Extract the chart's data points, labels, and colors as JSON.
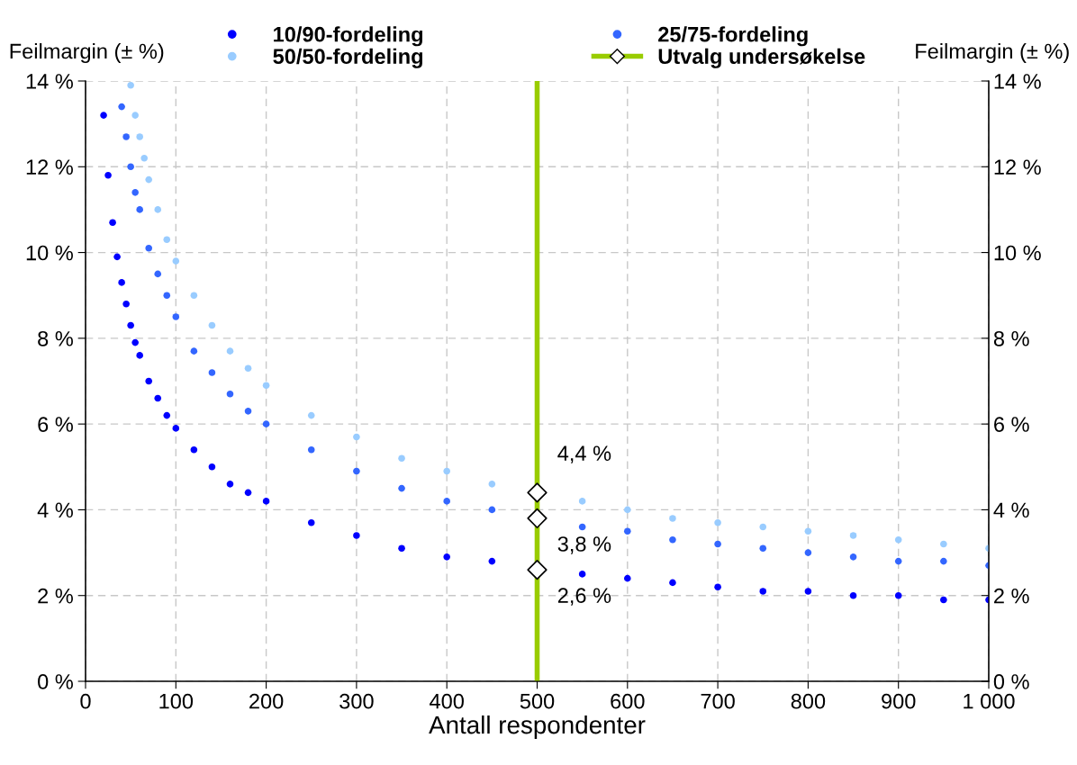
{
  "chart_data": {
    "type": "scatter",
    "xlabel": "Antall respondenter",
    "ylabel": "Feilmargin (± %)",
    "y2label": "Feilmargin (± %)",
    "xlim": [
      0,
      1000
    ],
    "xticks": [
      0,
      100,
      200,
      300,
      400,
      500,
      600,
      700,
      800,
      900,
      {
        "value": 1000,
        "label": "1 000"
      }
    ],
    "ylim": [
      0,
      14
    ],
    "yticks": [
      {
        "value": 0,
        "label": "0 %"
      },
      {
        "value": 2,
        "label": "2 %"
      },
      {
        "value": 4,
        "label": "4 %"
      },
      {
        "value": 6,
        "label": "6 %"
      },
      {
        "value": 8,
        "label": "8 %"
      },
      {
        "value": 10,
        "label": "10 %"
      },
      {
        "value": 12,
        "label": "12 %"
      },
      {
        "value": 14,
        "label": "14 %"
      }
    ],
    "y2lim": [
      0,
      14
    ],
    "y2ticks": [
      {
        "value": 0,
        "label": "0 %"
      },
      {
        "value": 2,
        "label": "2 %"
      },
      {
        "value": 4,
        "label": "4 %"
      },
      {
        "value": 6,
        "label": "6 %"
      },
      {
        "value": 8,
        "label": "8 %"
      },
      {
        "value": 10,
        "label": "10 %"
      },
      {
        "value": 12,
        "label": "12 %"
      },
      {
        "value": 14,
        "label": "14 %"
      }
    ],
    "grid": true,
    "legend": "top",
    "marker": "circle",
    "ref_lines": [
      {
        "axis": "x",
        "value": 500,
        "color": "#99cc00"
      }
    ],
    "series": [
      {
        "name": "10/90-fordeling",
        "color": "#0000ff",
        "x": [
          20,
          25,
          30,
          35,
          40,
          45,
          50,
          55,
          60,
          70,
          80,
          90,
          100,
          120,
          140,
          160,
          180,
          200,
          250,
          300,
          350,
          400,
          450,
          500,
          550,
          600,
          650,
          700,
          750,
          800,
          850,
          900,
          950,
          1000
        ],
        "values": [
          13.2,
          11.8,
          10.7,
          9.9,
          9.3,
          8.8,
          8.3,
          7.9,
          7.6,
          7.0,
          6.6,
          6.2,
          5.9,
          5.4,
          5.0,
          4.6,
          4.4,
          4.2,
          3.7,
          3.4,
          3.1,
          2.9,
          2.8,
          null,
          2.5,
          2.4,
          2.3,
          2.2,
          2.1,
          2.1,
          2.0,
          2.0,
          1.9,
          1.9
        ]
      },
      {
        "name": "25/75-fordeling",
        "color": "#3366ff",
        "x": [
          40,
          45,
          50,
          55,
          60,
          70,
          80,
          90,
          100,
          120,
          140,
          160,
          180,
          200,
          250,
          300,
          350,
          400,
          450,
          500,
          550,
          600,
          650,
          700,
          750,
          800,
          850,
          900,
          950,
          1000
        ],
        "values": [
          13.4,
          12.7,
          12.0,
          11.4,
          11.0,
          10.1,
          9.5,
          9.0,
          8.5,
          7.7,
          7.2,
          6.7,
          6.3,
          6.0,
          5.4,
          4.9,
          4.5,
          4.2,
          4.0,
          null,
          3.6,
          3.5,
          3.3,
          3.2,
          3.1,
          3.0,
          2.9,
          2.8,
          2.8,
          2.7
        ]
      },
      {
        "name": "50/50-fordeling",
        "color": "#99ccff",
        "x": [
          50,
          55,
          60,
          65,
          70,
          80,
          90,
          100,
          120,
          140,
          160,
          180,
          200,
          250,
          300,
          350,
          400,
          450,
          500,
          550,
          600,
          650,
          700,
          750,
          800,
          850,
          900,
          950,
          1000
        ],
        "values": [
          13.9,
          13.2,
          12.7,
          12.2,
          11.7,
          11.0,
          10.3,
          9.8,
          9.0,
          8.3,
          7.7,
          7.3,
          6.9,
          6.2,
          5.7,
          5.2,
          4.9,
          4.6,
          null,
          4.2,
          4.0,
          3.8,
          3.7,
          3.6,
          3.5,
          3.4,
          3.3,
          3.2,
          3.1
        ]
      },
      {
        "name": "Utvalg undersøkelse",
        "color": "#ffffff",
        "marker": "diamond",
        "x": [
          500,
          500,
          500
        ],
        "values": [
          2.6,
          3.8,
          4.4
        ],
        "value_labels": [
          "2,6 %",
          "3,8 %",
          "4,4 %"
        ]
      }
    ]
  }
}
